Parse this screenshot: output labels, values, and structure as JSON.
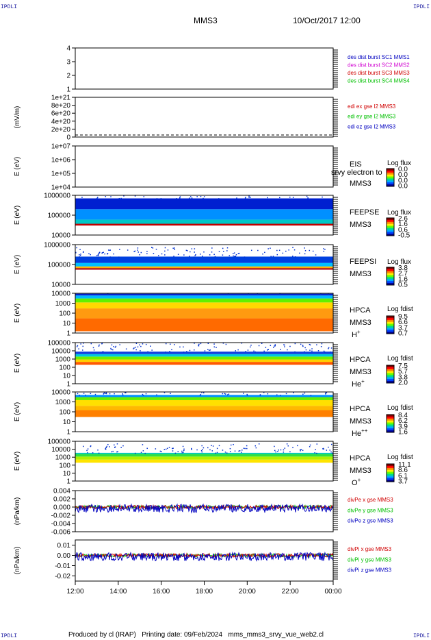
{
  "header": {
    "corner_tl": "IPDLI",
    "corner_tr": "IPDLI",
    "corner_bl": "IPDLI",
    "corner_br": "IPDLI",
    "mission": "MMS3",
    "datetime": "10/Oct/2017 12:00"
  },
  "footer": "Produced by cl (IRAP)   Printing date: 09/Feb/2024   mms_mms3_srvy_vue_web2.cl",
  "x_axis": {
    "ticks": [
      "12:00",
      "14:00",
      "16:00",
      "18:00",
      "20:00",
      "22:00",
      "00:00"
    ]
  },
  "colors": {
    "red": "#d00000",
    "green": "#00c000",
    "blue": "#0000c0",
    "magenta": "#d000d0"
  },
  "chart_data": [
    {
      "type": "line",
      "ylabel": "",
      "yticks": [
        "1",
        "2",
        "3",
        "4"
      ],
      "ylim": [
        1,
        4
      ],
      "legend": [
        {
          "name": "des dist burst SC1 MMS1",
          "color": "#0000c0"
        },
        {
          "name": "des dist burst SC2 MMS2",
          "color": "#d000d0"
        },
        {
          "name": "des dist burst SC3 MMS3",
          "color": "#d00000"
        },
        {
          "name": "des dist burst SC4 MMS4",
          "color": "#00c000"
        }
      ]
    },
    {
      "type": "line",
      "ylabel": "(mV/m)",
      "yticks": [
        "0",
        "2e+20",
        "4e+20",
        "6e+20",
        "8e+20",
        "1e+21"
      ],
      "ylim": [
        0,
        1e+21
      ],
      "legend": [
        {
          "name": "edi ex gse l2 MMS3",
          "color": "#d00000"
        },
        {
          "name": "edi ey gse l2 MMS3",
          "color": "#00c000"
        },
        {
          "name": "edi ez gse l2 MMS3",
          "color": "#0000c0"
        }
      ]
    },
    {
      "type": "heatmap",
      "ylabel": "E (eV)",
      "yticks": [
        "1e+04",
        "1e+05",
        "1e+06",
        "1e+07"
      ],
      "ylim": [
        10000.0,
        10000000.0
      ],
      "labels": [
        "EIS",
        "MMS3"
      ],
      "overlay": "srvy electron to",
      "cbar_title": "Log flux",
      "cbar": [
        "0.0",
        "0.0",
        "0.0",
        "0.0"
      ]
    },
    {
      "type": "heatmap",
      "ylabel": "E (eV)",
      "yticks": [
        "10000",
        "100000",
        "1000000"
      ],
      "ylim": [
        10000.0,
        1000000.0
      ],
      "labels": [
        "FEEPSE",
        "MMS3"
      ],
      "cbar_title": "Log flux",
      "cbar": [
        "2.6",
        "1.6",
        "0.6",
        "-0.5"
      ]
    },
    {
      "type": "heatmap",
      "ylabel": "E (eV)",
      "yticks": [
        "10000",
        "100000",
        "1000000"
      ],
      "ylim": [
        10000.0,
        1000000.0
      ],
      "labels": [
        "FEEPSI",
        "MMS3"
      ],
      "cbar_title": "Log flux",
      "cbar": [
        "3.8",
        "2.7",
        "1.6",
        "0.5"
      ]
    },
    {
      "type": "heatmap",
      "ylabel": "E (eV)",
      "yticks": [
        "1",
        "10",
        "100",
        "1000",
        "10000"
      ],
      "ylim": [
        1,
        10000.0
      ],
      "labels": [
        "HPCA",
        "MMS3",
        "H+"
      ],
      "cbar_title": "Log fdist",
      "cbar": [
        "9.5",
        "6.6",
        "3.7",
        "0.7"
      ]
    },
    {
      "type": "heatmap",
      "ylabel": "E (eV)",
      "yticks": [
        "1",
        "10",
        "100",
        "1000",
        "10000",
        "100000"
      ],
      "ylim": [
        1,
        100000.0
      ],
      "labels": [
        "HPCA",
        "MMS3",
        "He+"
      ],
      "cbar_title": "Log fdist",
      "cbar": [
        "7.5",
        "5.7",
        "3.8",
        "2.0"
      ]
    },
    {
      "type": "heatmap",
      "ylabel": "E (eV)",
      "yticks": [
        "1",
        "10",
        "100",
        "1000",
        "10000"
      ],
      "ylim": [
        1,
        10000.0
      ],
      "labels": [
        "HPCA",
        "MMS3",
        "He++"
      ],
      "cbar_title": "Log fdist",
      "cbar": [
        "8.4",
        "6.2",
        "3.9",
        "1.6"
      ]
    },
    {
      "type": "heatmap",
      "ylabel": "E (eV)",
      "yticks": [
        "1",
        "10",
        "100",
        "1000",
        "10000",
        "100000"
      ],
      "ylim": [
        1,
        100000.0
      ],
      "labels": [
        "HPCA",
        "MMS3",
        "O+"
      ],
      "cbar_title": "Log fdist",
      "cbar": [
        "11.1",
        "8.6",
        "6.1",
        "3.7"
      ]
    },
    {
      "type": "line",
      "ylabel": "(nPa/km)",
      "yticks": [
        "-0.006",
        "-0.004",
        "-0.002",
        "0.000",
        "0.002",
        "0.004"
      ],
      "ylim": [
        -0.006,
        0.004
      ],
      "legend": [
        {
          "name": "divPe x gse MMS3",
          "color": "#d00000"
        },
        {
          "name": "divPe y gse MMS3",
          "color": "#00c000"
        },
        {
          "name": "divPe z gse MMS3",
          "color": "#0000c0"
        }
      ]
    },
    {
      "type": "line",
      "ylabel": "(nPa/km)",
      "yticks": [
        "-0.02",
        "-0.01",
        "0.00",
        "0.01"
      ],
      "ylim": [
        -0.025,
        0.015
      ],
      "legend": [
        {
          "name": "divPi x gse MMS3",
          "color": "#d00000"
        },
        {
          "name": "divPi y gse MMS3",
          "color": "#00c000"
        },
        {
          "name": "divPi z gse MMS3",
          "color": "#0000c0"
        }
      ]
    }
  ]
}
